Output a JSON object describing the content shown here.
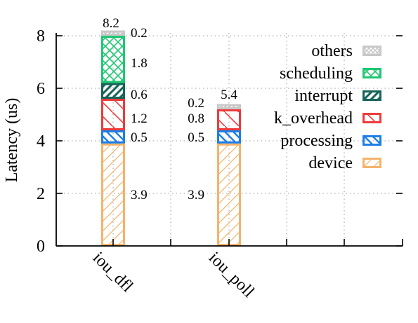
{
  "chart_data": {
    "type": "bar",
    "stacked": true,
    "ylabel": "Latency (us)",
    "xlabel": "",
    "ylim": [
      0,
      8.2
    ],
    "yticks": [
      0,
      2,
      4,
      6,
      8
    ],
    "grid": true,
    "legend_position": "top-right",
    "categories": [
      "iou_dfl",
      "iou_poll"
    ],
    "totals": [
      "8.2",
      "5.4"
    ],
    "series": [
      {
        "name": "device",
        "color": "#f5b36b",
        "values": [
          3.9,
          3.9
        ],
        "labels": [
          "3.9",
          "3.9"
        ]
      },
      {
        "name": "processing",
        "color": "#1e7fe6",
        "values": [
          0.5,
          0.5
        ],
        "labels": [
          "0.5",
          "0.5"
        ]
      },
      {
        "name": "k_overhead",
        "color": "#ee3b3b",
        "values": [
          1.2,
          0.8
        ],
        "labels": [
          "1.2",
          "0.8"
        ]
      },
      {
        "name": "interrupt",
        "color": "#16645a",
        "values": [
          0.6,
          0
        ],
        "labels": [
          "0.6",
          ""
        ]
      },
      {
        "name": "scheduling",
        "color": "#1fc772",
        "values": [
          1.8,
          0
        ],
        "labels": [
          "1.8",
          ""
        ]
      },
      {
        "name": "others",
        "color": "#c8c8c8",
        "values": [
          0.2,
          0.2
        ],
        "labels": [
          "0.2",
          "0.2"
        ]
      }
    ]
  }
}
